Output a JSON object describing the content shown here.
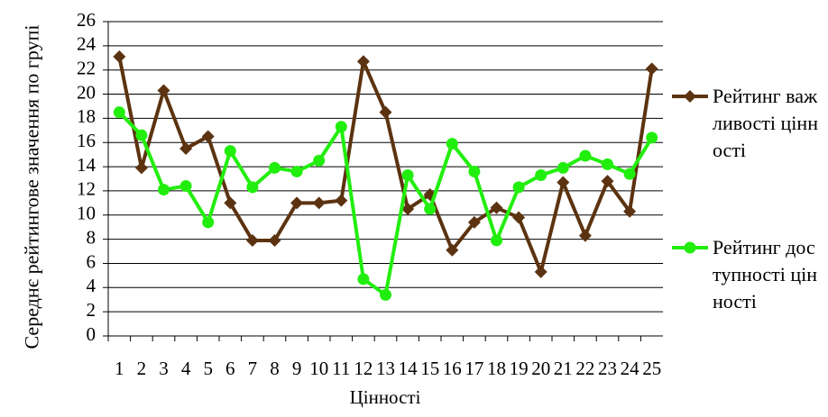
{
  "chart_data": {
    "type": "line",
    "x_label": "Цінності",
    "y_label": "Середнє рейтингове значення по групі",
    "categories": [
      "1",
      "2",
      "3",
      "4",
      "5",
      "6",
      "7",
      "8",
      "9",
      "10",
      "11",
      "12",
      "13",
      "14",
      "15",
      "16",
      "17",
      "18",
      "19",
      "20",
      "21",
      "22",
      "23",
      "24",
      "25"
    ],
    "series": [
      {
        "name": "Рейтинг важливості цінності",
        "color": "#5c3310",
        "marker": "diamond",
        "values": [
          23.1,
          13.9,
          20.3,
          15.5,
          16.5,
          11.0,
          7.9,
          7.9,
          11.0,
          11.0,
          11.2,
          22.7,
          18.5,
          10.5,
          11.7,
          7.1,
          9.4,
          10.6,
          9.8,
          5.3,
          12.7,
          8.3,
          12.8,
          10.3,
          22.1
        ]
      },
      {
        "name": "Рейтинг доступності цінності",
        "color": "#22ee0e",
        "marker": "circle",
        "values": [
          18.5,
          16.6,
          12.1,
          12.4,
          9.4,
          15.3,
          12.3,
          13.9,
          13.6,
          14.5,
          17.3,
          4.7,
          3.4,
          13.3,
          10.5,
          15.9,
          13.6,
          7.9,
          12.3,
          13.3,
          13.9,
          14.9,
          14.2,
          13.4,
          16.4
        ]
      }
    ],
    "ylim": [
      0,
      26
    ],
    "yticks": [
      0,
      2,
      4,
      6,
      8,
      10,
      12,
      14,
      16,
      18,
      20,
      22,
      24,
      26
    ],
    "grid": true,
    "legend": "right"
  }
}
